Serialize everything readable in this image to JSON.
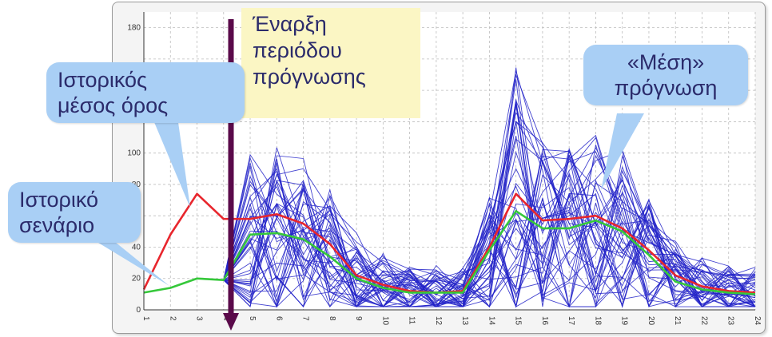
{
  "chart_data": {
    "type": "line",
    "x": [
      1,
      2,
      3,
      4,
      5,
      6,
      7,
      8,
      9,
      10,
      11,
      12,
      13,
      14,
      15,
      16,
      17,
      18,
      19,
      20,
      21,
      22,
      23,
      24
    ],
    "ylim": [
      0,
      190
    ],
    "y_ticks": [
      0,
      20,
      40,
      60,
      80,
      100,
      180
    ],
    "grid": true,
    "series": [
      {
        "color": "#e8262d",
        "x": [
          1,
          2,
          3,
          4,
          5,
          6,
          7,
          8,
          9,
          10,
          11,
          12,
          13,
          14,
          15,
          16,
          17,
          18,
          19,
          20,
          21,
          22,
          23,
          24
        ],
        "values": [
          13,
          48,
          74,
          58,
          58,
          61,
          55,
          42,
          22,
          16,
          12,
          11,
          12,
          40,
          74,
          57,
          58,
          60,
          52,
          38,
          22,
          15,
          12,
          11
        ]
      },
      {
        "color": "#35c83a",
        "x": [
          1,
          2,
          3,
          4,
          5,
          6,
          7,
          8,
          9,
          10,
          11,
          12,
          13,
          14,
          15,
          16,
          17,
          18,
          19,
          20,
          21,
          22,
          23,
          24
        ],
        "values": [
          11,
          14,
          20,
          19,
          48,
          49,
          45,
          34,
          20,
          14,
          11,
          11,
          11,
          38,
          63,
          52,
          52,
          57,
          50,
          35,
          18,
          13,
          11,
          10
        ]
      }
    ],
    "ensemble_color": "#2222c8"
  },
  "annotations": {
    "historical_mean": [
      "Ιστορικός",
      "μέσος όρος"
    ],
    "historical_scenario": [
      "Ιστορικό",
      "σενάριο"
    ],
    "forecast_start": [
      "Έναρξη",
      "περιόδου",
      "πρόγνωσης"
    ],
    "mean_forecast": [
      "«Μέση»",
      "πρόγνωση"
    ]
  },
  "colors": {
    "callout_fill": "#a9cff5",
    "note_fill": "#fbf6c4",
    "arrow": "#5a0a4a"
  }
}
